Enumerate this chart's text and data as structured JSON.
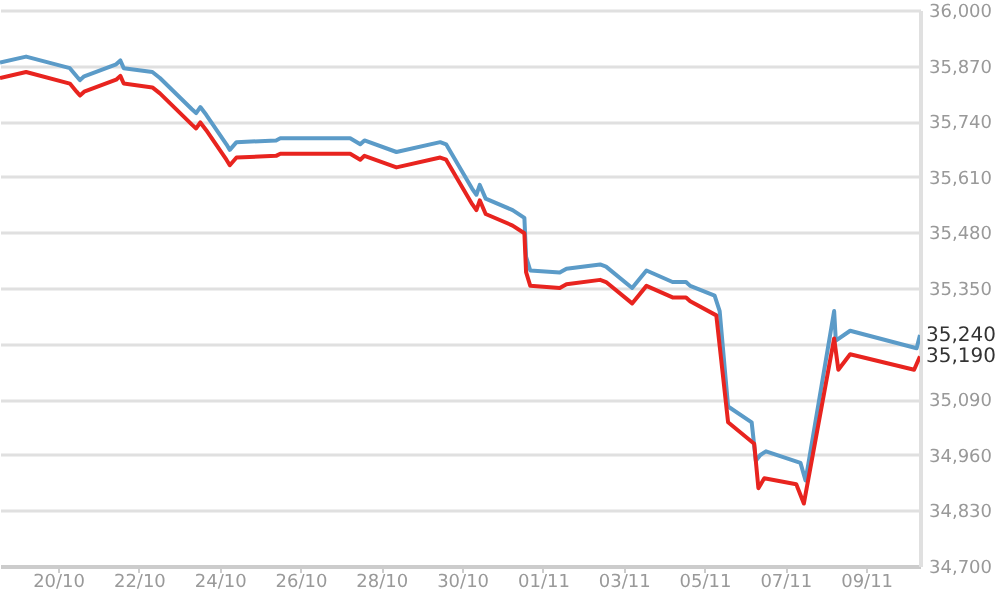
{
  "chart_data": {
    "type": "line",
    "x": [
      "--10-18T13:30",
      "--10-19T05:00",
      "--10-20T07:00",
      "--10-20T11:00",
      "--10-20T13:00",
      "--10-20T15:30",
      "--10-21T10:30",
      "--10-21T13:00",
      "--10-21T15:00",
      "--10-22T08:00",
      "--10-22T12:30",
      "--10-23T07:30",
      "--10-23T10:00",
      "--10-23T12:30",
      "--10-23T16:00",
      "--10-24T04:00",
      "--10-24T06:00",
      "--10-24T10:00",
      "--10-25T09:30",
      "--10-25T12:00",
      "--10-27T05:30",
      "--10-27T11:30",
      "--10-27T14:00",
      "--10-28T09:00",
      "--10-29T11:00",
      "--10-29T14:30",
      "--10-30T06:00",
      "--10-30T08:30",
      "--10-30T10:30",
      "--10-30T14:00",
      "--10-31T06:00",
      "--10-31T13:00",
      "--10-31T14:00",
      "--10-31T16:30",
      "--11-01T10:00",
      "--11-01T14:00",
      "--11-02T10:00",
      "--11-02T13:30",
      "--11-03T05:00",
      "--11-03T13:30",
      "--11-04T05:00",
      "--11-04T13:00",
      "--11-04T15:30",
      "--11-05T06:00",
      "--11-05T09:00",
      "--11-05T14:00",
      "--11-06T04:00",
      "--11-06T06:30",
      "--11-06T09:00",
      "--11-06T12:30",
      "--11-07T09:00",
      "--11-07T12:00",
      "--11-08T05:00",
      "--11-08T06:00",
      "--11-08T14:30",
      "--11-10T06:00",
      "--11-10T08:00"
    ],
    "series": [
      {
        "color": "#5b9bc8",
        "values": [
          35877,
          35891,
          35864,
          35845,
          35836,
          35845,
          35873,
          35882,
          35864,
          35855,
          35841,
          35768,
          35759,
          35773,
          35755,
          35686,
          35673,
          35691,
          35695,
          35700,
          35700,
          35686,
          35695,
          35668,
          35691,
          35686,
          35582,
          35568,
          35591,
          35559,
          35532,
          35514,
          35423,
          35391,
          35386,
          35395,
          35405,
          35400,
          35350,
          35391,
          35364,
          35364,
          35355,
          35332,
          35296,
          35073,
          35036,
          34946,
          34959,
          34968,
          34941,
          34900,
          35296,
          35227,
          35250,
          35209,
          35240
        ]
      },
      {
        "color": "#e8241f",
        "x": [
          "--10-18T13:30",
          "--10-19T05:00",
          "--10-20T07:00",
          "--10-20T11:00",
          "--10-20T13:00",
          "--10-20T15:30",
          "--10-21T10:30",
          "--10-21T13:00",
          "--10-21T15:00",
          "--10-22T08:00",
          "--10-22T12:30",
          "--10-23T07:30",
          "--10-23T10:00",
          "--10-23T12:30",
          "--10-23T16:00",
          "--10-24T04:00",
          "--10-24T06:00",
          "--10-24T10:00",
          "--10-25T09:30",
          "--10-25T12:00",
          "--10-27T05:30",
          "--10-27T11:30",
          "--10-27T14:00",
          "--10-28T09:00",
          "--10-29T11:00",
          "--10-29T14:30",
          "--10-30T06:00",
          "--10-30T08:30",
          "--10-30T10:30",
          "--10-30T14:00",
          "--10-31T06:00",
          "--10-31T13:00",
          "--10-31T14:00",
          "--10-31T16:30",
          "--11-01T10:00",
          "--11-01T14:00",
          "--11-02T10:00",
          "--11-02T13:30",
          "--11-03T05:00",
          "--11-03T13:30",
          "--11-04T05:00",
          "--11-04T13:00",
          "--11-04T15:30",
          "--11-05T07:00",
          "--11-05T14:00",
          "--11-06T05:30",
          "--11-06T08:00",
          "--11-06T11:30",
          "--11-07T06:30",
          "--11-07T11:00",
          "--11-08T05:00",
          "--11-08T07:30",
          "--11-08T14:30",
          "--11-10T04:30",
          "--11-10T08:00"
        ],
        "values": [
          35841,
          35855,
          35828,
          35809,
          35800,
          35809,
          35837,
          35846,
          35828,
          35819,
          35805,
          35732,
          35723,
          35737,
          35719,
          35650,
          35637,
          35655,
          35659,
          35664,
          35664,
          35650,
          35659,
          35632,
          35655,
          35650,
          35546,
          35532,
          35555,
          35523,
          35496,
          35478,
          35387,
          35355,
          35350,
          35359,
          35369,
          35364,
          35314,
          35355,
          35328,
          35328,
          35319,
          35286,
          35036,
          34986,
          34882,
          34905,
          34891,
          34846,
          35232,
          35159,
          35195,
          35159,
          35190
        ]
      }
    ],
    "xlim": [
      "--10-18T13:30",
      "--11-10T08:00"
    ],
    "xticks": [
      {
        "value": "--10-20",
        "label": "20/10"
      },
      {
        "value": "--10-22",
        "label": "22/10"
      },
      {
        "value": "--10-24",
        "label": "24/10"
      },
      {
        "value": "--10-26",
        "label": "26/10"
      },
      {
        "value": "--10-28",
        "label": "28/10"
      },
      {
        "value": "--10-30",
        "label": "30/10"
      },
      {
        "value": "--11-01",
        "label": "01/11"
      },
      {
        "value": "--11-03",
        "label": "03/11"
      },
      {
        "value": "--11-05",
        "label": "05/11"
      },
      {
        "value": "--11-07",
        "label": "07/11"
      },
      {
        "value": "--11-09",
        "label": "09/11"
      }
    ],
    "ylim": [
      34700,
      36000
    ],
    "yticks": [
      {
        "value": 34700,
        "label": "34,700"
      },
      {
        "value": 34830,
        "label": "34,830"
      },
      {
        "value": 34960,
        "label": "34,960"
      },
      {
        "value": 35090,
        "label": "35,090"
      },
      {
        "value": 35220,
        "label": null
      },
      {
        "value": 35350,
        "label": "35,350"
      },
      {
        "value": 35480,
        "label": "35,480"
      },
      {
        "value": 35610,
        "label": "35,610"
      },
      {
        "value": 35740,
        "label": "35,740"
      },
      {
        "value": 35870,
        "label": "35,870"
      },
      {
        "value": 36000,
        "label": "36,000"
      }
    ],
    "annotations": [
      {
        "text": "35,240",
        "x": "--11-10T08:00",
        "y": 35240
      },
      {
        "text": "35,190",
        "x": "--11-10T08:00",
        "y": 35190
      }
    ],
    "grid": "y",
    "marker": "none",
    "line_style": "solid"
  }
}
